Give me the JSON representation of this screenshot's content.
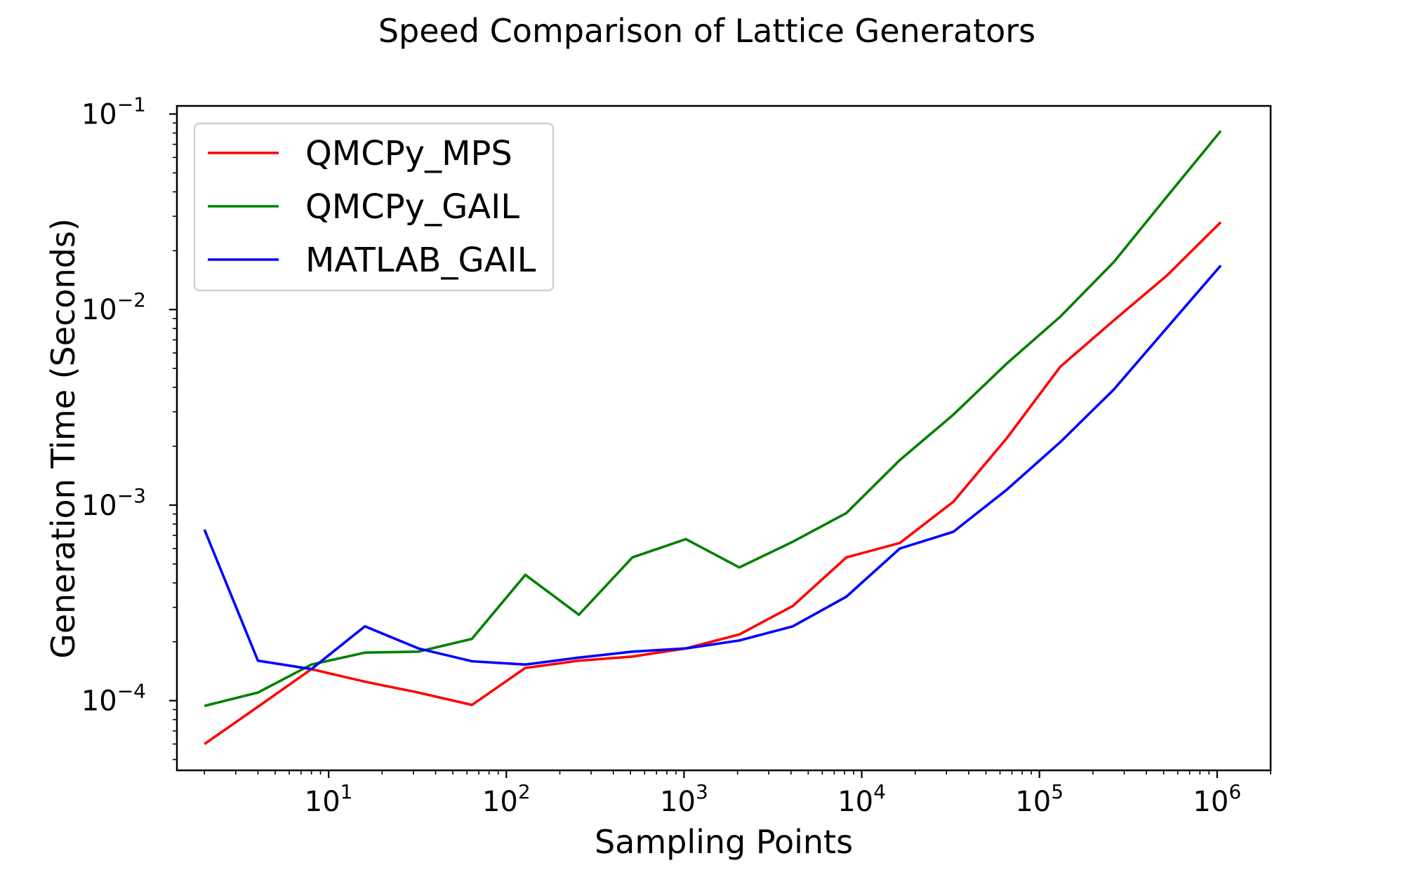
{
  "chart_data": {
    "type": "line",
    "title": "Speed Comparison of Lattice Generators",
    "xlabel": "Sampling Points",
    "ylabel": "Generation Time (Seconds)",
    "xscale": "log",
    "yscale": "log",
    "xlim": [
      1.4,
      2000000
    ],
    "ylim": [
      4.4e-05,
      0.11
    ],
    "x_ticks": [
      {
        "value": 10,
        "base": "10",
        "exp": "1"
      },
      {
        "value": 100,
        "base": "10",
        "exp": "2"
      },
      {
        "value": 1000,
        "base": "10",
        "exp": "3"
      },
      {
        "value": 10000,
        "base": "10",
        "exp": "4"
      },
      {
        "value": 100000,
        "base": "10",
        "exp": "5"
      },
      {
        "value": 1000000,
        "base": "10",
        "exp": "6"
      }
    ],
    "y_ticks": [
      {
        "value": 0.0001,
        "base": "10",
        "exp": "−4"
      },
      {
        "value": 0.001,
        "base": "10",
        "exp": "−3"
      },
      {
        "value": 0.01,
        "base": "10",
        "exp": "−2"
      },
      {
        "value": 0.1,
        "base": "10",
        "exp": "−1"
      }
    ],
    "legend_position": "top-left",
    "grid": false,
    "x": [
      2,
      4,
      8,
      16,
      32,
      64,
      128,
      256,
      512,
      1024,
      2048,
      4096,
      8192,
      16384,
      32768,
      65536,
      131072,
      262144,
      524288,
      1048576
    ],
    "series": [
      {
        "name": "QMCPy_MPS",
        "color": "#ff0000",
        "values": [
          6e-05,
          9.3e-05,
          0.000145,
          0.000125,
          0.00011,
          9.5e-05,
          0.000147,
          0.00016,
          0.000168,
          0.000185,
          0.000218,
          0.000305,
          0.00054,
          0.00064,
          0.00104,
          0.0022,
          0.0051,
          0.0088,
          0.015,
          0.028
        ]
      },
      {
        "name": "QMCPy_GAIL",
        "color": "#008000",
        "values": [
          9.4e-05,
          0.00011,
          0.000153,
          0.000176,
          0.000178,
          0.000207,
          0.00044,
          0.000275,
          0.00054,
          0.00067,
          0.00048,
          0.00065,
          0.00091,
          0.0017,
          0.0029,
          0.0053,
          0.0092,
          0.0175,
          0.038,
          0.082
        ]
      },
      {
        "name": "MATLAB_GAIL",
        "color": "#0000ff",
        "values": [
          0.00075,
          0.00016,
          0.000145,
          0.00024,
          0.000185,
          0.000159,
          0.000153,
          0.000166,
          0.000178,
          0.000185,
          0.000203,
          0.00024,
          0.00034,
          0.0006,
          0.00073,
          0.0012,
          0.0021,
          0.0039,
          0.0081,
          0.0168
        ]
      }
    ]
  }
}
